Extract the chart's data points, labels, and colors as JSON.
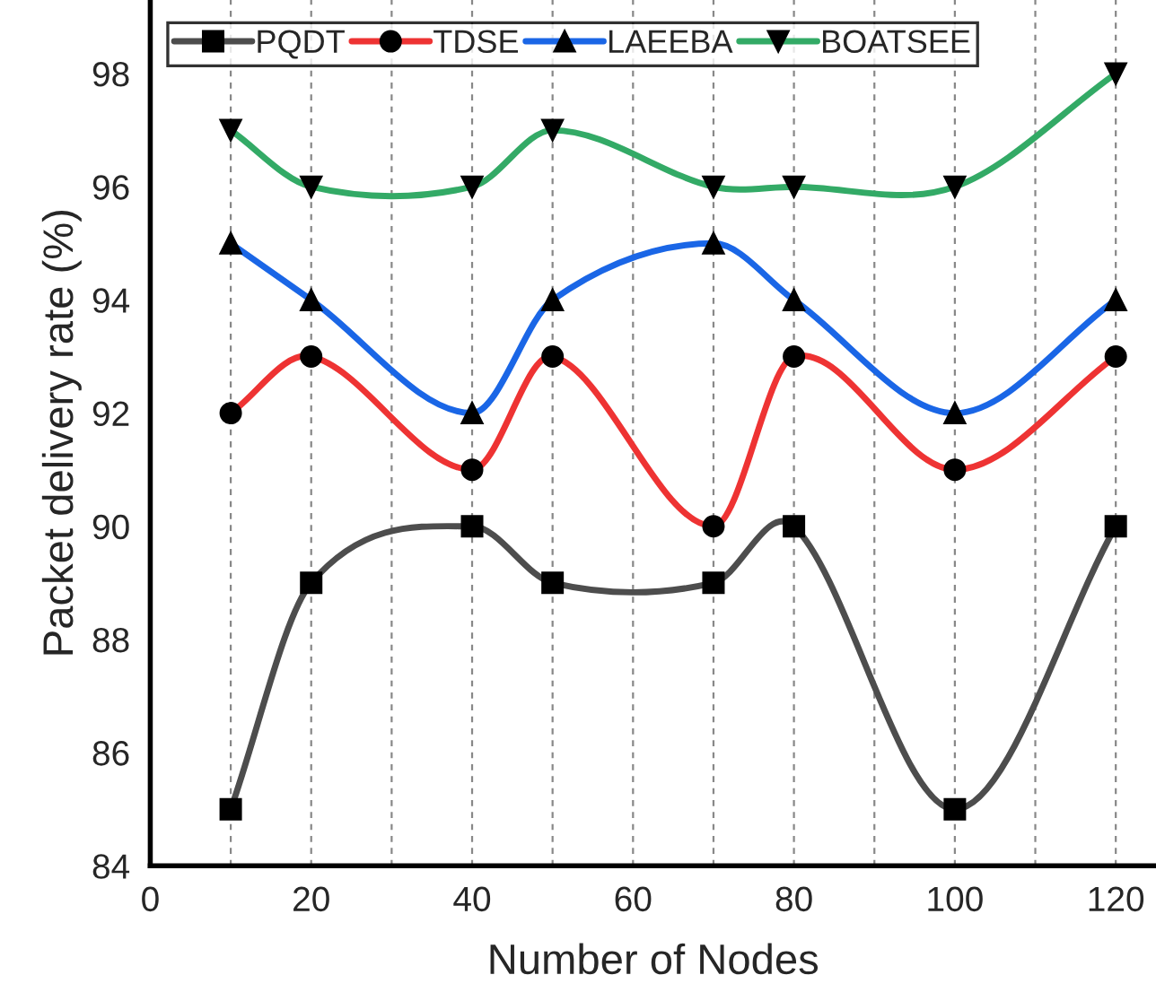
{
  "chart_data": {
    "type": "line",
    "xlabel": "Number of Nodes",
    "ylabel": "Packet delivery rate (%)",
    "x": [
      10,
      20,
      40,
      50,
      70,
      80,
      100,
      120
    ],
    "series": [
      {
        "name": "PQDT",
        "color": "#4d4d4d",
        "marker": "square",
        "values": [
          85,
          89,
          90,
          89,
          89,
          90,
          85,
          90
        ]
      },
      {
        "name": "TDSE",
        "color": "#ee3333",
        "marker": "circle",
        "values": [
          92,
          93,
          91,
          93,
          90,
          93,
          91,
          93
        ]
      },
      {
        "name": "LAEEBA",
        "color": "#1a66e6",
        "marker": "triangle",
        "values": [
          95,
          94,
          92,
          94,
          95,
          94,
          92,
          94
        ]
      },
      {
        "name": "BOATSEE",
        "color": "#33aa66",
        "marker": "triangle_down",
        "values": [
          97,
          96,
          96,
          97,
          96,
          96,
          96,
          98
        ]
      }
    ],
    "xlim": [
      0,
      125
    ],
    "ylim": [
      84,
      99.3
    ],
    "xticks": [
      0,
      20,
      40,
      60,
      80,
      100,
      120
    ],
    "yticks": [
      84,
      86,
      88,
      90,
      92,
      94,
      96,
      98
    ],
    "grid": "x",
    "legend": "top",
    "line_style": "solid"
  }
}
